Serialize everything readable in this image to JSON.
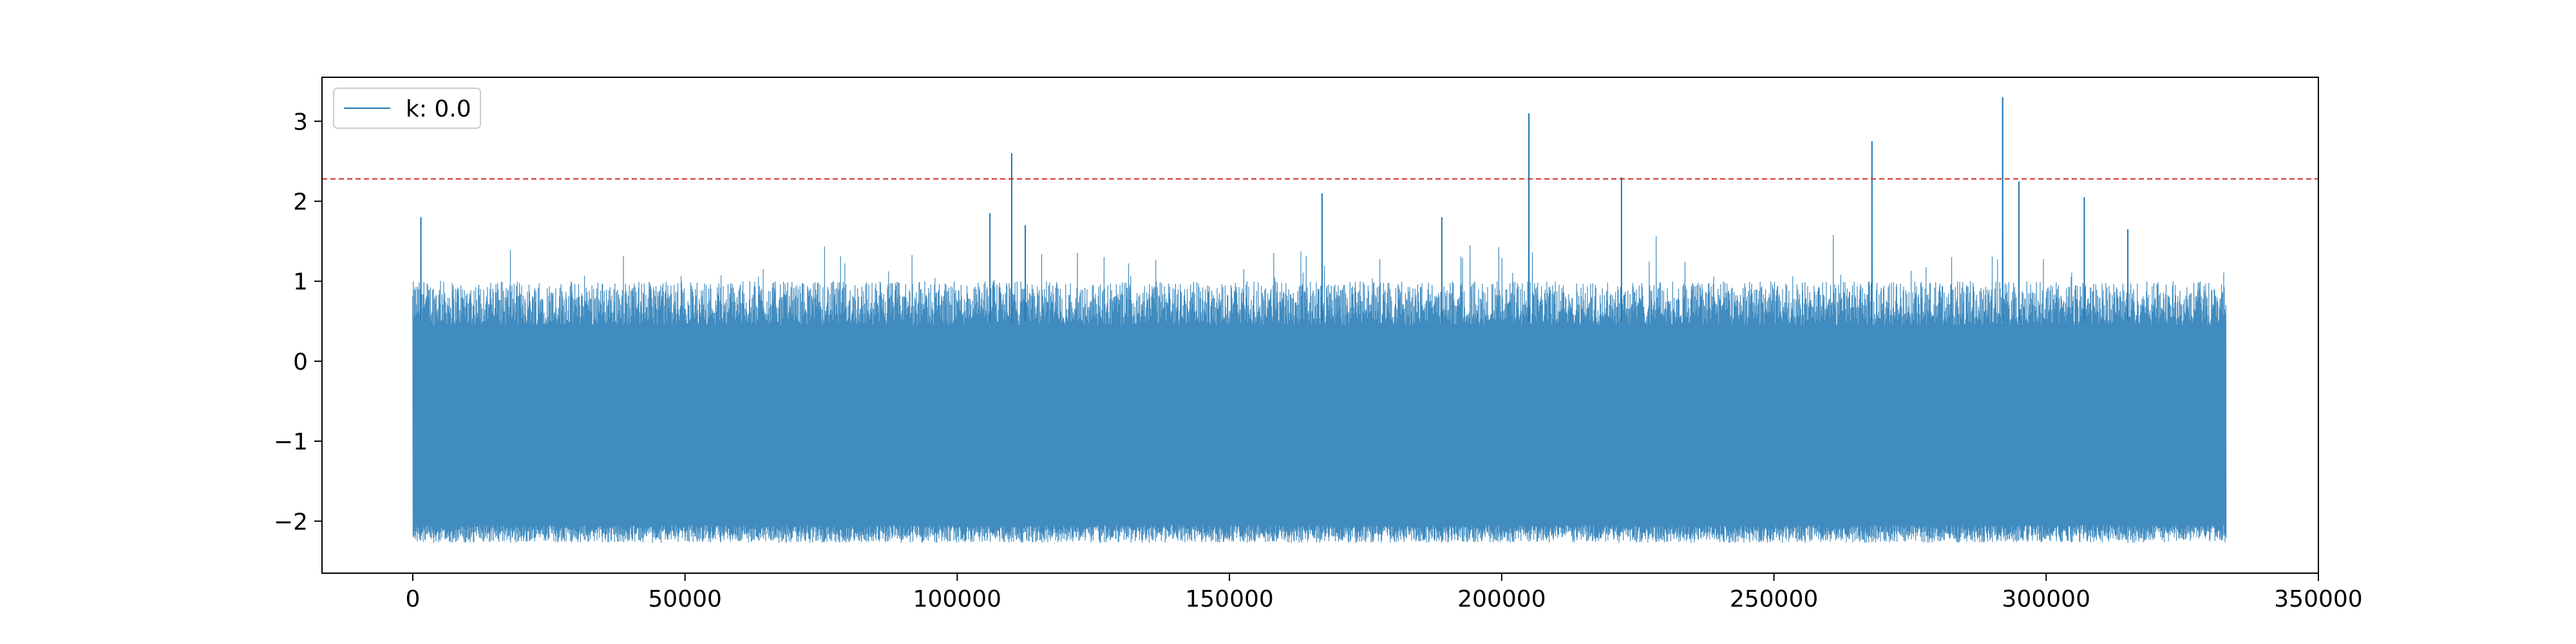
{
  "chart_data": {
    "type": "line",
    "title": "",
    "xlabel": "",
    "ylabel": "",
    "xlim": [
      -16670,
      350000
    ],
    "ylim": [
      -2.65,
      3.55
    ],
    "grid": false,
    "legend_placement": "top-left",
    "x_ticks": [
      0,
      50000,
      100000,
      150000,
      200000,
      250000,
      300000,
      350000
    ],
    "x_tick_labels": [
      "0",
      "50000",
      "100000",
      "150000",
      "200000",
      "250000",
      "300000",
      "350000"
    ],
    "y_ticks": [
      -2,
      -1,
      0,
      1,
      2,
      3
    ],
    "y_tick_labels": [
      "−2",
      "−1",
      "0",
      "1",
      "2",
      "3"
    ],
    "series": [
      {
        "name": "k: 0.0",
        "color": "#1f77b4",
        "x_range": [
          0,
          333000
        ],
        "band_upper_typical": 0.8,
        "band_lower_typical": -2.2,
        "min_value": -2.4,
        "spikes": [
          {
            "x": 1500,
            "y": 1.8
          },
          {
            "x": 106000,
            "y": 1.85
          },
          {
            "x": 110000,
            "y": 2.6
          },
          {
            "x": 112500,
            "y": 1.7
          },
          {
            "x": 167000,
            "y": 2.1
          },
          {
            "x": 189000,
            "y": 1.8
          },
          {
            "x": 205000,
            "y": 3.1
          },
          {
            "x": 222000,
            "y": 2.3
          },
          {
            "x": 268000,
            "y": 2.75
          },
          {
            "x": 292000,
            "y": 3.3
          },
          {
            "x": 295000,
            "y": 2.25
          },
          {
            "x": 307000,
            "y": 2.05
          },
          {
            "x": 315000,
            "y": 1.65
          }
        ]
      }
    ],
    "threshold_line": {
      "y": 2.28,
      "color": "#d62728",
      "style": "dashed"
    }
  }
}
